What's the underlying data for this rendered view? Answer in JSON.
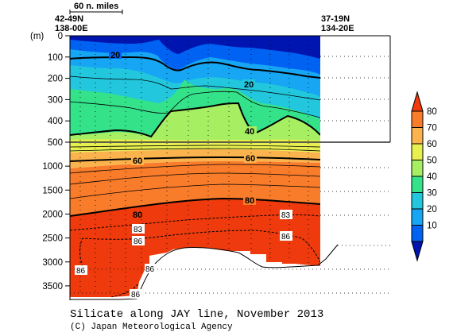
{
  "chart_data": {
    "type": "heatmap",
    "title": "Silicate along JAY line, November 2013",
    "credit": "(C) Japan Meteorological Agency",
    "y_unit": "(m)",
    "scale_label": "60 n. miles",
    "start_station": {
      "lat": "42-49N",
      "lon": "138-00E"
    },
    "end_station": {
      "lat": "37-19N",
      "lon": "134-20E"
    },
    "yticks_upper": [
      "0",
      "100",
      "200",
      "300",
      "400",
      "500"
    ],
    "yticks_lower": [
      "1000",
      "1500",
      "2000",
      "2500",
      "3000",
      "3500"
    ],
    "depth_upper_range": [
      0,
      500
    ],
    "depth_lower_range": [
      500,
      3800
    ],
    "contour_labels": [
      "20",
      "20",
      "40",
      "60",
      "60",
      "80",
      "80",
      "83",
      "83",
      "86",
      "86",
      "86",
      "86",
      "86"
    ],
    "colorbar": {
      "levels": [
        "80",
        "70",
        "60",
        "50",
        "40",
        "30",
        "20",
        "10"
      ],
      "colors": [
        "#ee3a0c",
        "#f97c2b",
        "#fbb44d",
        "#e8f050",
        "#a6ef62",
        "#34e28a",
        "#22c7dd",
        "#16a6f4",
        "#0062f2",
        "#0014b0"
      ]
    },
    "bottom_profile_depth_m": [
      3650,
      3650,
      3660,
      3665,
      3620,
      3000,
      2750,
      2650,
      2650,
      2700,
      3000,
      3020,
      3000,
      2650
    ]
  }
}
